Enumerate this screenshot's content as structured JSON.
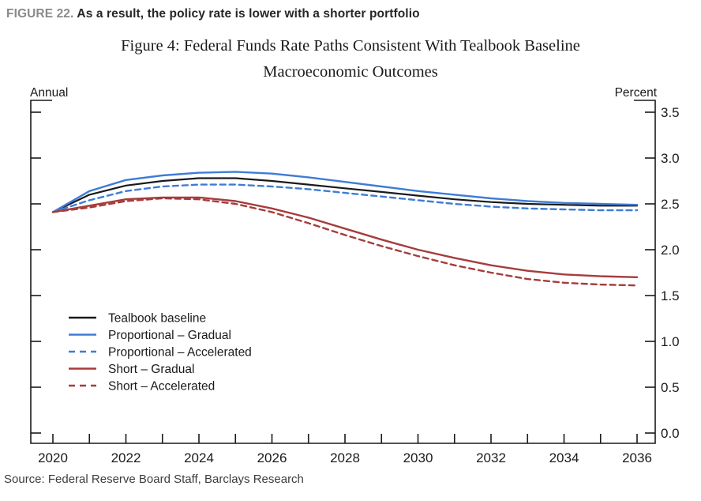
{
  "header": {
    "figure_label": "FIGURE 22.",
    "figure_caption": "As a result, the policy rate is lower with a shorter portfolio"
  },
  "title": {
    "line1": "Figure 4: Federal Funds Rate Paths Consistent With Tealbook Baseline",
    "line2": "Macroeconomic Outcomes"
  },
  "source": {
    "text": "Source: Federal Reserve Board Staff, Barclays Research"
  },
  "colors": {
    "baseline": "#1a1a1a",
    "proportional": "#3f7cd6",
    "short": "#a63c3c",
    "axis": "#1a1a1a",
    "figure_label": "#8a8a8a",
    "caption": "#262626",
    "source": "#3d3d3d"
  },
  "chart_data": {
    "type": "line",
    "top_left_label": "Annual",
    "top_right_label": "Percent",
    "x": [
      2020,
      2021,
      2022,
      2023,
      2024,
      2025,
      2026,
      2027,
      2028,
      2029,
      2030,
      2031,
      2032,
      2033,
      2034,
      2035,
      2036
    ],
    "x_labeled_ticks": [
      2020,
      2022,
      2024,
      2026,
      2028,
      2030,
      2032,
      2034,
      2036
    ],
    "ylim": [
      0.0,
      3.5
    ],
    "y_ticks": [
      0.0,
      0.5,
      1.0,
      1.5,
      2.0,
      2.5,
      3.0,
      3.5
    ],
    "y_tick_labels": [
      "0.0",
      "0.5",
      "1.0",
      "1.5",
      "2.0",
      "2.5",
      "3.0",
      "3.5"
    ],
    "grid": false,
    "legend_position": "inside-bottom-left",
    "series": [
      {
        "name": "Tealbook baseline",
        "color_key": "baseline",
        "style": "solid",
        "values": [
          2.41,
          2.6,
          2.7,
          2.75,
          2.78,
          2.78,
          2.75,
          2.71,
          2.67,
          2.63,
          2.59,
          2.55,
          2.52,
          2.5,
          2.49,
          2.48,
          2.48
        ]
      },
      {
        "name": "Proportional – Gradual",
        "color_key": "proportional",
        "style": "solid",
        "values": [
          2.41,
          2.64,
          2.76,
          2.81,
          2.84,
          2.85,
          2.83,
          2.79,
          2.74,
          2.69,
          2.64,
          2.6,
          2.56,
          2.53,
          2.51,
          2.5,
          2.49
        ]
      },
      {
        "name": "Proportional – Accelerated",
        "color_key": "proportional",
        "style": "dashed",
        "values": [
          2.41,
          2.54,
          2.64,
          2.69,
          2.71,
          2.71,
          2.69,
          2.66,
          2.62,
          2.58,
          2.54,
          2.5,
          2.47,
          2.45,
          2.44,
          2.43,
          2.43
        ]
      },
      {
        "name": "Short – Gradual",
        "color_key": "short",
        "style": "solid",
        "values": [
          2.41,
          2.48,
          2.55,
          2.57,
          2.57,
          2.53,
          2.45,
          2.35,
          2.23,
          2.11,
          2.0,
          1.91,
          1.83,
          1.77,
          1.73,
          1.71,
          1.7
        ]
      },
      {
        "name": "Short – Accelerated",
        "color_key": "short",
        "style": "dashed",
        "values": [
          2.41,
          2.46,
          2.53,
          2.56,
          2.55,
          2.5,
          2.41,
          2.29,
          2.16,
          2.04,
          1.93,
          1.83,
          1.75,
          1.68,
          1.64,
          1.62,
          1.61
        ]
      }
    ]
  }
}
